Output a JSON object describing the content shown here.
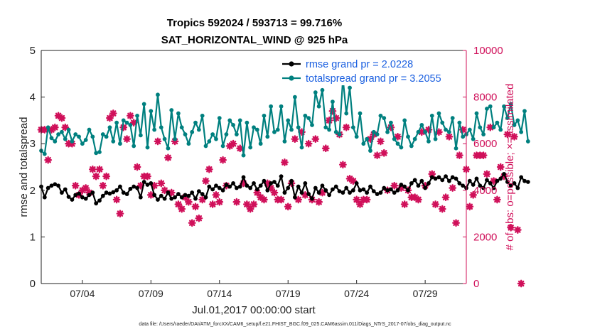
{
  "chart_data": {
    "type": "line",
    "title": "Tropics 592024 / 593713 = 99.716%",
    "subtitle": "SAT_HORIZONTAL_WIND @ 925 hPa",
    "ylabel_left": "rmse and totalspread",
    "ylabel_right": "# of obs: o=possible; ×=assimilated",
    "xlabel": "Jul.01,2017 00:00:00 start",
    "footer": "data file: /Users/raeder/DAI/ATM_forcXX/CAM6_setup/f.e21.FHIST_BGC.f09_025.CAM6assim.011/Diags_NTrS_2017-07/obs_diag_output.nc",
    "xlim": [
      1.0,
      32.0
    ],
    "ylim_left": [
      0,
      5
    ],
    "ylim_right": [
      0,
      10000
    ],
    "yticks_left": [
      0,
      1,
      2,
      3,
      4,
      5
    ],
    "yticks_right": [
      0,
      2000,
      4000,
      6000,
      8000,
      10000
    ],
    "xticks": [
      {
        "pos": 4,
        "label": "07/04"
      },
      {
        "pos": 9,
        "label": "07/09"
      },
      {
        "pos": 14,
        "label": "07/14"
      },
      {
        "pos": 19,
        "label": "07/19"
      },
      {
        "pos": 24,
        "label": "07/24"
      },
      {
        "pos": 29,
        "label": "07/29"
      }
    ],
    "x_start": 1.0,
    "x_step": 0.25,
    "legend_position": "top-right",
    "colors": {
      "rmse": "#000000",
      "spread": "#00807f",
      "obs": "#d0105a",
      "legend_text": "#1a5fe0"
    },
    "legend": {
      "rmse": "rmse grand pr = 2.0228",
      "spread": "totalspread grand pr = 3.2055"
    },
    "series": [
      {
        "name": "rmse",
        "axis": "left",
        "values": [
          2.08,
          1.85,
          2.05,
          2.1,
          2.13,
          2.1,
          1.95,
          2.02,
          1.86,
          1.8,
          1.9,
          1.93,
          1.85,
          1.82,
          1.9,
          1.95,
          1.72,
          1.78,
          1.88,
          1.95,
          1.93,
          1.96,
          2.0,
          2.08,
          1.95,
          1.92,
          2.03,
          2.08,
          2.05,
          1.85,
          2.18,
          2.12,
          2.15,
          1.9,
          1.8,
          1.88,
          1.82,
          1.95,
          1.82,
          1.85,
          1.92,
          1.85,
          1.9,
          1.88,
          1.95,
          1.82,
          1.98,
          1.92,
          1.85,
          2.08,
          2.02,
          2.1,
          2.05,
          2.0,
          2.12,
          2.08,
          2.15,
          2.05,
          2.08,
          2.28,
          2.1,
          2.05,
          2.15,
          2.02,
          2.1,
          2.2,
          2.0,
          2.15,
          2.18,
          2.1,
          2.3,
          1.95,
          2.05,
          2.2,
          1.85,
          2.08,
          1.95,
          2.15,
          1.92,
          1.82,
          2.05,
          1.95,
          2.1,
          2.0,
          1.9,
          2.02,
          2.08,
          1.98,
          1.95,
          2.05,
          1.95,
          2.0,
          2.15,
          2.0,
          2.02,
          1.95,
          2.08,
          1.98,
          1.92,
          1.95,
          2.05,
          2.0,
          2.02,
          1.95,
          2.0,
          2.12,
          2.08,
          2.0,
          2.15,
          2.22,
          2.1,
          2.2,
          2.05,
          2.15,
          2.28,
          2.25,
          2.28,
          2.22,
          2.3,
          2.2,
          2.28,
          2.25,
          2.15,
          2.1,
          2.05,
          2.2,
          2.12,
          2.25,
          2.1,
          2.05,
          2.22,
          2.15,
          2.05,
          2.2,
          2.25,
          2.35,
          2.18,
          2.1,
          2.15,
          2.05,
          2.28,
          2.2,
          2.18
        ]
      },
      {
        "name": "totalspread",
        "axis": "left",
        "values": [
          2.85,
          2.78,
          3.35,
          3.12,
          3.05,
          3.2,
          3.25,
          3.1,
          3.3,
          3.05,
          3.2,
          3.15,
          3.0,
          3.08,
          3.3,
          3.15,
          2.8,
          2.82,
          3.2,
          3.15,
          3.35,
          3.05,
          3.45,
          3.0,
          3.5,
          3.45,
          3.4,
          2.95,
          3.6,
          3.18,
          3.85,
          2.92,
          3.7,
          3.3,
          4.05,
          3.35,
          3.1,
          2.9,
          3.72,
          3.1,
          3.65,
          3.35,
          3.2,
          3.0,
          3.25,
          3.45,
          3.3,
          3.6,
          2.95,
          3.05,
          3.2,
          3.1,
          3.55,
          2.95,
          3.2,
          3.5,
          3.4,
          3.2,
          3.5,
          2.75,
          3.45,
          2.92,
          3.35,
          3.3,
          3.0,
          3.6,
          3.15,
          3.8,
          3.25,
          3.3,
          3.8,
          3.05,
          3.5,
          3.3,
          4.0,
          3.35,
          2.92,
          3.6,
          3.55,
          3.4,
          4.1,
          3.8,
          4.15,
          3.35,
          3.3,
          3.9,
          3.25,
          3.2,
          4.4,
          3.65,
          4.2,
          3.35,
          3.15,
          3.65,
          3.0,
          3.1,
          2.85,
          3.25,
          3.2,
          3.6,
          3.55,
          3.25,
          3.45,
          3.1,
          3.0,
          2.92,
          3.5,
          3.15,
          2.95,
          3.1,
          3.25,
          3.4,
          3.25,
          3.05,
          3.6,
          3.1,
          3.65,
          3.45,
          3.3,
          3.25,
          3.55,
          2.9,
          3.45,
          3.15,
          3.2,
          3.3,
          3.1,
          3.65,
          3.35,
          3.2,
          3.75,
          3.8,
          3.35,
          3.45,
          3.3,
          3.8,
          3.55,
          3.85,
          3.4,
          3.5,
          3.25,
          3.7,
          3.05
        ]
      }
    ],
    "obs_values": [
      6600,
      6600,
      5300,
      6600,
      6700,
      7200,
      7100,
      6700,
      6000,
      6000,
      4200,
      3800,
      4000,
      4100,
      3900,
      4900,
      4600,
      4900,
      4200,
      4600,
      7100,
      7300,
      3600,
      3000,
      6700,
      6200,
      7200,
      6900,
      5000,
      4200,
      4600,
      4600,
      3800,
      4200,
      6100,
      4300,
      4000,
      5400,
      3900,
      6100,
      3400,
      3200,
      3700,
      3500,
      2600,
      3300,
      2800,
      3600,
      4400,
      4900,
      3400,
      3800,
      3500,
      5300,
      4200,
      5900,
      6000,
      3500,
      5800,
      4300,
      3400,
      3200,
      3400,
      3900,
      3700,
      3600,
      4300,
      4100,
      3900,
      3600,
      3600,
      5200,
      3300,
      4300,
      6200,
      3600,
      6500,
      3800,
      6000,
      3600,
      6200,
      3500,
      3900,
      5800,
      7000,
      7400,
      7100,
      6400,
      5100,
      6700,
      4500,
      4400,
      3600,
      3400,
      3600,
      3600,
      6200,
      6400,
      5500,
      6100,
      5600,
      4000,
      6700,
      4200,
      6300,
      4100,
      3400,
      4000,
      3700,
      3700,
      3600,
      6500,
      4200,
      6600,
      4700,
      3400,
      6500,
      3200,
      3700,
      6300,
      4100,
      2600,
      5500,
      6600,
      4900,
      3300,
      3800,
      5500,
      5500,
      5500,
      4700,
      6700,
      4400,
      3600,
      5000,
      4600,
      6400,
      2400,
      6300,
      2300,
      0
    ]
  }
}
